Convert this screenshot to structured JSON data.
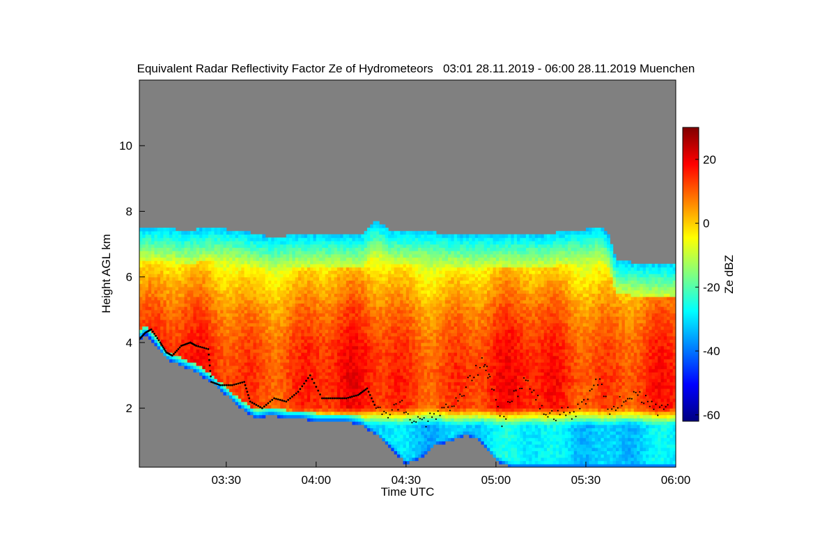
{
  "chart_data": {
    "type": "heatmap",
    "title": "Equivalent Radar Reflectivity Factor Ze of Hydrometeors   03:01 28.11.2019 - 06:00 28.11.2019 Muenchen",
    "xlabel": "Time UTC",
    "ylabel": "Height AGL km",
    "xlim": [
      "03:01",
      "06:00"
    ],
    "x_ticks": [
      {
        "value": 30,
        "label": "03:30"
      },
      {
        "value": 60,
        "label": "04:00"
      },
      {
        "value": 90,
        "label": "04:30"
      },
      {
        "value": 120,
        "label": "05:00"
      },
      {
        "value": 150,
        "label": "05:30"
      },
      {
        "value": 180,
        "label": "06:00"
      }
    ],
    "ylim": [
      0.2,
      12.0
    ],
    "y_ticks": [
      {
        "value": 2,
        "label": "2"
      },
      {
        "value": 4,
        "label": "4"
      },
      {
        "value": 6,
        "label": "6"
      },
      {
        "value": 8,
        "label": "8"
      },
      {
        "value": 10,
        "label": "10"
      }
    ],
    "colorbar": {
      "label": "Ze dBZ",
      "range": [
        -62,
        30
      ],
      "ticks": [
        {
          "value": 20,
          "label": "20"
        },
        {
          "value": 0,
          "label": "0"
        },
        {
          "value": -20,
          "label": "-20"
        },
        {
          "value": -40,
          "label": "-40"
        },
        {
          "value": -60,
          "label": "-60"
        }
      ],
      "colors": [
        "#000080",
        "#0000ff",
        "#0080ff",
        "#00ffff",
        "#80ff80",
        "#ffff00",
        "#ff8000",
        "#ff0000",
        "#800000"
      ]
    },
    "no_data_color": "#808080",
    "cloud_top_km": [
      [
        1,
        7.5
      ],
      [
        10,
        7.5
      ],
      [
        15,
        7.4
      ],
      [
        25,
        7.5
      ],
      [
        35,
        7.4
      ],
      [
        45,
        7.2
      ],
      [
        55,
        7.3
      ],
      [
        65,
        7.3
      ],
      [
        75,
        7.3
      ],
      [
        80,
        7.7
      ],
      [
        85,
        7.4
      ],
      [
        95,
        7.4
      ],
      [
        105,
        7.3
      ],
      [
        115,
        7.3
      ],
      [
        125,
        7.3
      ],
      [
        135,
        7.3
      ],
      [
        145,
        7.4
      ],
      [
        155,
        7.5
      ],
      [
        158,
        7.2
      ],
      [
        160,
        6.5
      ],
      [
        170,
        6.4
      ],
      [
        180,
        6.4
      ]
    ],
    "cloud_base_km": [
      [
        1,
        4.1
      ],
      [
        3,
        4.3
      ],
      [
        6,
        4.0
      ],
      [
        10,
        3.5
      ],
      [
        15,
        3.3
      ],
      [
        20,
        3.1
      ],
      [
        25,
        2.8
      ],
      [
        30,
        2.4
      ],
      [
        35,
        2.0
      ],
      [
        40,
        1.7
      ],
      [
        45,
        1.8
      ],
      [
        50,
        1.7
      ],
      [
        55,
        1.7
      ],
      [
        60,
        1.6
      ],
      [
        65,
        1.6
      ],
      [
        70,
        1.6
      ],
      [
        75,
        1.5
      ],
      [
        80,
        1.2
      ],
      [
        85,
        0.8
      ],
      [
        90,
        0.3
      ],
      [
        95,
        0.5
      ],
      [
        100,
        0.9
      ],
      [
        105,
        1.0
      ],
      [
        110,
        1.2
      ],
      [
        115,
        1.0
      ],
      [
        120,
        0.4
      ],
      [
        125,
        0.2
      ],
      [
        180,
        0.2
      ]
    ],
    "reflectivity_profile": [
      {
        "height_km": 7.5,
        "ze_dbz": -25
      },
      {
        "height_km": 6.8,
        "ze_dbz": -10
      },
      {
        "height_km": 6.0,
        "ze_dbz": 0
      },
      {
        "height_km": 5.0,
        "ze_dbz": 8
      },
      {
        "height_km": 4.0,
        "ze_dbz": 13
      },
      {
        "height_km": 3.0,
        "ze_dbz": 15
      },
      {
        "height_km": 2.0,
        "ze_dbz": 14
      },
      {
        "height_km": 1.5,
        "ze_dbz": -30
      }
    ],
    "melting_layer_series": {
      "color": "#000000",
      "points": [
        [
          1,
          4.1
        ],
        [
          3,
          4.3
        ],
        [
          5,
          4.4
        ],
        [
          8,
          4.0
        ],
        [
          10,
          3.7
        ],
        [
          12,
          3.6
        ],
        [
          15,
          3.9
        ],
        [
          18,
          4.0
        ],
        [
          20,
          3.9
        ],
        [
          24,
          3.8
        ],
        [
          25,
          2.8
        ],
        [
          28,
          2.7
        ],
        [
          32,
          2.7
        ],
        [
          36,
          2.8
        ],
        [
          38,
          2.2
        ],
        [
          42,
          2.0
        ],
        [
          46,
          2.3
        ],
        [
          50,
          2.2
        ],
        [
          54,
          2.5
        ],
        [
          58,
          3.0
        ],
        [
          62,
          2.3
        ],
        [
          66,
          2.3
        ],
        [
          70,
          2.3
        ],
        [
          74,
          2.4
        ],
        [
          77,
          2.6
        ],
        [
          80,
          2.0
        ],
        [
          84,
          1.9
        ],
        [
          88,
          2.2
        ],
        [
          92,
          1.6
        ],
        [
          96,
          1.6
        ],
        [
          100,
          1.7
        ],
        [
          104,
          2.0
        ],
        [
          108,
          2.3
        ],
        [
          112,
          3.0
        ],
        [
          116,
          3.4
        ],
        [
          118,
          2.9
        ],
        [
          122,
          1.6
        ],
        [
          126,
          2.4
        ],
        [
          130,
          2.8
        ],
        [
          134,
          2.2
        ],
        [
          138,
          1.7
        ],
        [
          142,
          1.9
        ],
        [
          146,
          1.8
        ],
        [
          150,
          2.2
        ],
        [
          154,
          2.9
        ],
        [
          158,
          2.0
        ],
        [
          162,
          2.2
        ],
        [
          166,
          2.5
        ],
        [
          170,
          2.2
        ],
        [
          174,
          1.9
        ],
        [
          178,
          2.0
        ]
      ]
    }
  }
}
